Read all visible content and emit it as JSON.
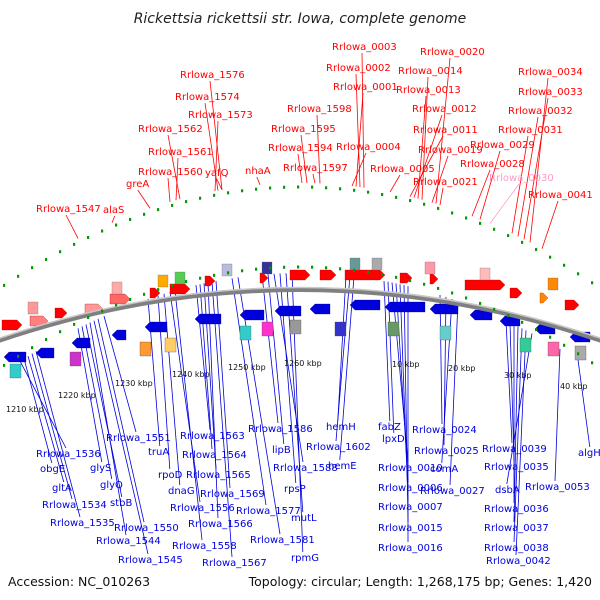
{
  "title": "Rickettsia rickettsii str. Iowa, complete genome",
  "footer": {
    "accession": "Accession: NC_010263",
    "info": "Topology: circular; Length: 1,268,175 bp; Genes: 1,420"
  },
  "colors": {
    "forward": "#ff0000",
    "reverse": "#0000dd",
    "highlight": "#ff99cc",
    "backbone": "#808080",
    "ticks": "#009900"
  },
  "scale_labels": [
    "1210 kbp",
    "1220 kbp",
    "1230 kbp",
    "1240 kbp",
    "1250 kbp",
    "1260 kbp",
    "10 kbp",
    "20 kbp",
    "30 kbp",
    "40 kbp"
  ],
  "top_labels": [
    "Rrlowa_1547",
    "alaS",
    "greA",
    "Rrlowa_1560",
    "Rrlowa_1561",
    "Rrlowa_1562",
    "Rrlowa_1573",
    "Rrlowa_1574",
    "Rrlowa_1576",
    "yafQ",
    "nhaA",
    "Rrlowa_1594",
    "Rrlowa_1595",
    "Rrlowa_1597",
    "Rrlowa_1598",
    "Rrlowa_0004",
    "Rrlowa_0001",
    "Rrlowa_0002",
    "Rrlowa_0003",
    "Rrlowa_0005",
    "Rrlowa_0011",
    "Rrlowa_0012",
    "Rrlowa_0013",
    "Rrlowa_0014",
    "Rrlowa_0019",
    "Rrlowa_0020",
    "Rrlowa_0021",
    "Rrlowa_0028",
    "Rrlowa_0029",
    "Rrlowa_0030",
    "Rrlowa_0031",
    "Rrlowa_0032",
    "Rrlowa_0033",
    "Rrlowa_0034",
    "Rrlowa_0041"
  ],
  "bottom_labels": [
    "Rrlowa_1536",
    "obgE",
    "gltA",
    "Rrlowa_1534",
    "Rrlowa_1535",
    "glyS",
    "glyQ",
    "stbB",
    "Rrlowa_1544",
    "Rrlowa_1545",
    "Rrlowa_1550",
    "Rrlowa_1551",
    "truA",
    "rpoD",
    "dnaG",
    "Rrlowa_1556",
    "Rrlowa_1558",
    "Rrlowa_1563",
    "Rrlowa_1564",
    "Rrlowa_1565",
    "Rrlowa_1566",
    "Rrlowa_1567",
    "Rrlowa_1569",
    "Rrlowa_1577",
    "Rrlowa_1581",
    "Rrlowa_1586",
    "lipB",
    "Rrlowa_1588",
    "rpsP",
    "mutL",
    "rpmG",
    "hemH",
    "Rrlowa_1602",
    "hemE",
    "fabZ",
    "lpxD",
    "Rrlowa_0010",
    "Rrlowa_0006",
    "Rrlowa_0007",
    "Rrlowa_0015",
    "Rrlowa_0016",
    "Rrlowa_0024",
    "Rrlowa_0025",
    "comA",
    "Rrlowa_0027",
    "Rrlowa_0039",
    "Rrlowa_0035",
    "Rrlowa_0036",
    "Rrlowa_0037",
    "Rrlowa_0038",
    "Rrlowa_0042",
    "dsbA",
    "Rrlowa_0053",
    "algH"
  ]
}
